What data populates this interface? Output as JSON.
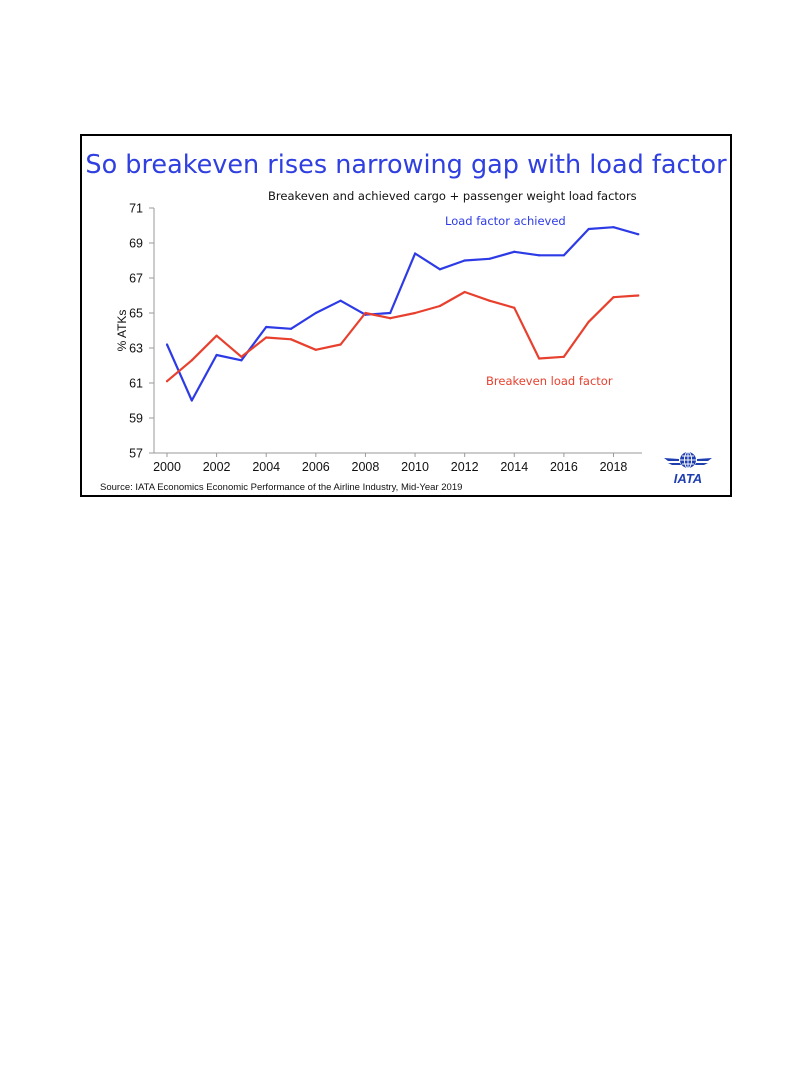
{
  "chart_data": {
    "type": "line",
    "title": "So breakeven rises narrowing gap with load factor",
    "subtitle": "Breakeven and achieved cargo + passenger weight load factors",
    "xlabel": "",
    "ylabel": "% ATKs",
    "x": [
      2000,
      2001,
      2002,
      2003,
      2004,
      2005,
      2006,
      2007,
      2008,
      2009,
      2010,
      2011,
      2012,
      2013,
      2014,
      2015,
      2016,
      2017,
      2018,
      2019
    ],
    "xticks": [
      "2000",
      "2002",
      "2004",
      "2006",
      "2008",
      "2010",
      "2012",
      "2014",
      "2016",
      "2018"
    ],
    "yticks": [
      "57",
      "59",
      "61",
      "63",
      "65",
      "67",
      "69",
      "71"
    ],
    "ylim": [
      57,
      71
    ],
    "grid": false,
    "series": [
      {
        "name": "Load factor achieved",
        "color": "#2d3be6",
        "values": [
          63.2,
          60.0,
          62.6,
          62.3,
          64.2,
          64.1,
          65.0,
          65.7,
          64.9,
          65.0,
          68.4,
          67.5,
          68.0,
          68.1,
          68.5,
          68.3,
          68.3,
          69.8,
          69.9,
          69.5
        ]
      },
      {
        "name": "Breakeven load factor",
        "color": "#e8402e",
        "values": [
          61.1,
          62.3,
          63.7,
          62.5,
          63.6,
          63.5,
          62.9,
          63.2,
          65.0,
          64.7,
          65.0,
          65.4,
          66.2,
          65.7,
          65.3,
          62.4,
          62.5,
          64.5,
          65.9,
          66.0
        ]
      }
    ],
    "source": "Source: IATA Economics Economic Performance of the Airline Industry, Mid-Year 2019"
  },
  "logo": {
    "name": "IATA",
    "icon": "globe-icon"
  }
}
